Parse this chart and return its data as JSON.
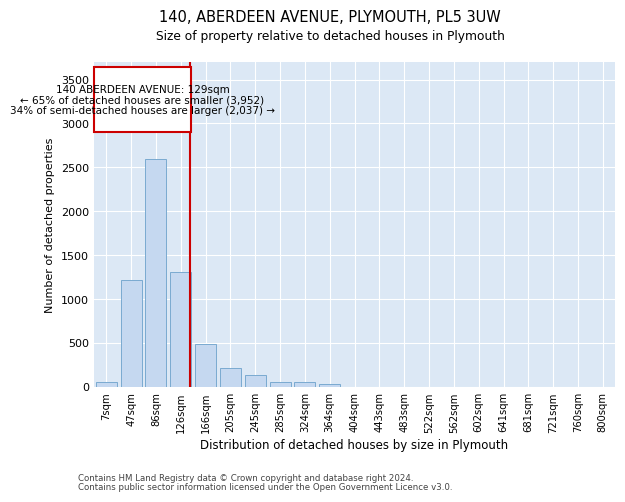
{
  "title1": "140, ABERDEEN AVENUE, PLYMOUTH, PL5 3UW",
  "title2": "Size of property relative to detached houses in Plymouth",
  "xlabel": "Distribution of detached houses by size in Plymouth",
  "ylabel": "Number of detached properties",
  "bar_color": "#c5d8f0",
  "bar_edge_color": "#7aaad0",
  "bg_color": "#dce8f5",
  "grid_color": "#ffffff",
  "annotation_box_color": "#cc0000",
  "property_line_color": "#cc0000",
  "categories": [
    "7sqm",
    "47sqm",
    "86sqm",
    "126sqm",
    "166sqm",
    "205sqm",
    "245sqm",
    "285sqm",
    "324sqm",
    "364sqm",
    "404sqm",
    "443sqm",
    "483sqm",
    "522sqm",
    "562sqm",
    "602sqm",
    "641sqm",
    "681sqm",
    "721sqm",
    "760sqm",
    "800sqm"
  ],
  "bar_values": [
    55,
    1220,
    2590,
    1310,
    490,
    220,
    140,
    55,
    55,
    30,
    0,
    0,
    0,
    0,
    0,
    0,
    0,
    0,
    0,
    0,
    0
  ],
  "ylim": [
    0,
    3700
  ],
  "yticks": [
    0,
    500,
    1000,
    1500,
    2000,
    2500,
    3000,
    3500
  ],
  "property_line_x": 3.37,
  "annotation_line1": "140 ABERDEEN AVENUE: 129sqm",
  "annotation_line2": "← 65% of detached houses are smaller (3,952)",
  "annotation_line3": "34% of semi-detached houses are larger (2,037) →",
  "footnote1": "Contains HM Land Registry data © Crown copyright and database right 2024.",
  "footnote2": "Contains public sector information licensed under the Open Government Licence v3.0."
}
